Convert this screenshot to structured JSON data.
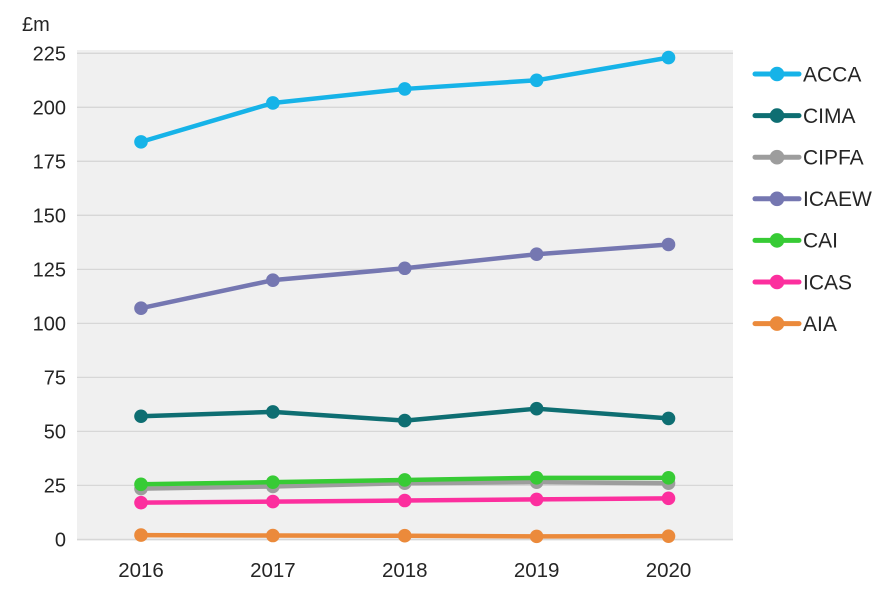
{
  "chart_data": {
    "type": "line",
    "title": "",
    "ylabel": "£m",
    "xlabel": "",
    "x": [
      "2016",
      "2017",
      "2018",
      "2019",
      "2020"
    ],
    "series": [
      {
        "name": "ACCA",
        "color": "#16b3e8",
        "values": [
          184,
          202,
          208.5,
          212.5,
          223
        ]
      },
      {
        "name": "CIMA",
        "color": "#0e6e72",
        "values": [
          57,
          59,
          55,
          60.5,
          56
        ]
      },
      {
        "name": "CIPFA",
        "color": "#9d9d9d",
        "values": [
          23.5,
          24.5,
          26,
          26.5,
          26
        ]
      },
      {
        "name": "ICAEW",
        "color": "#7577b1",
        "values": [
          107,
          120,
          125.5,
          132,
          136.5
        ]
      },
      {
        "name": "CAI",
        "color": "#37cb35",
        "values": [
          25.5,
          26.5,
          27.5,
          28.5,
          28.5
        ]
      },
      {
        "name": "ICAS",
        "color": "#fc2f9e",
        "values": [
          17,
          17.5,
          18,
          18.5,
          19
        ]
      },
      {
        "name": "AIA",
        "color": "#eb8a3b",
        "values": [
          2,
          1.8,
          1.7,
          1.4,
          1.5
        ]
      }
    ],
    "ylim": [
      0,
      225
    ],
    "ytick_step": 25,
    "yticks": [
      0,
      25,
      50,
      75,
      100,
      125,
      150,
      175,
      200,
      225
    ],
    "grid": true,
    "legend_position": "right",
    "plot_background": "#f0f0f0",
    "gridline_color": "#d7d7d7",
    "text_color": "#252525"
  }
}
